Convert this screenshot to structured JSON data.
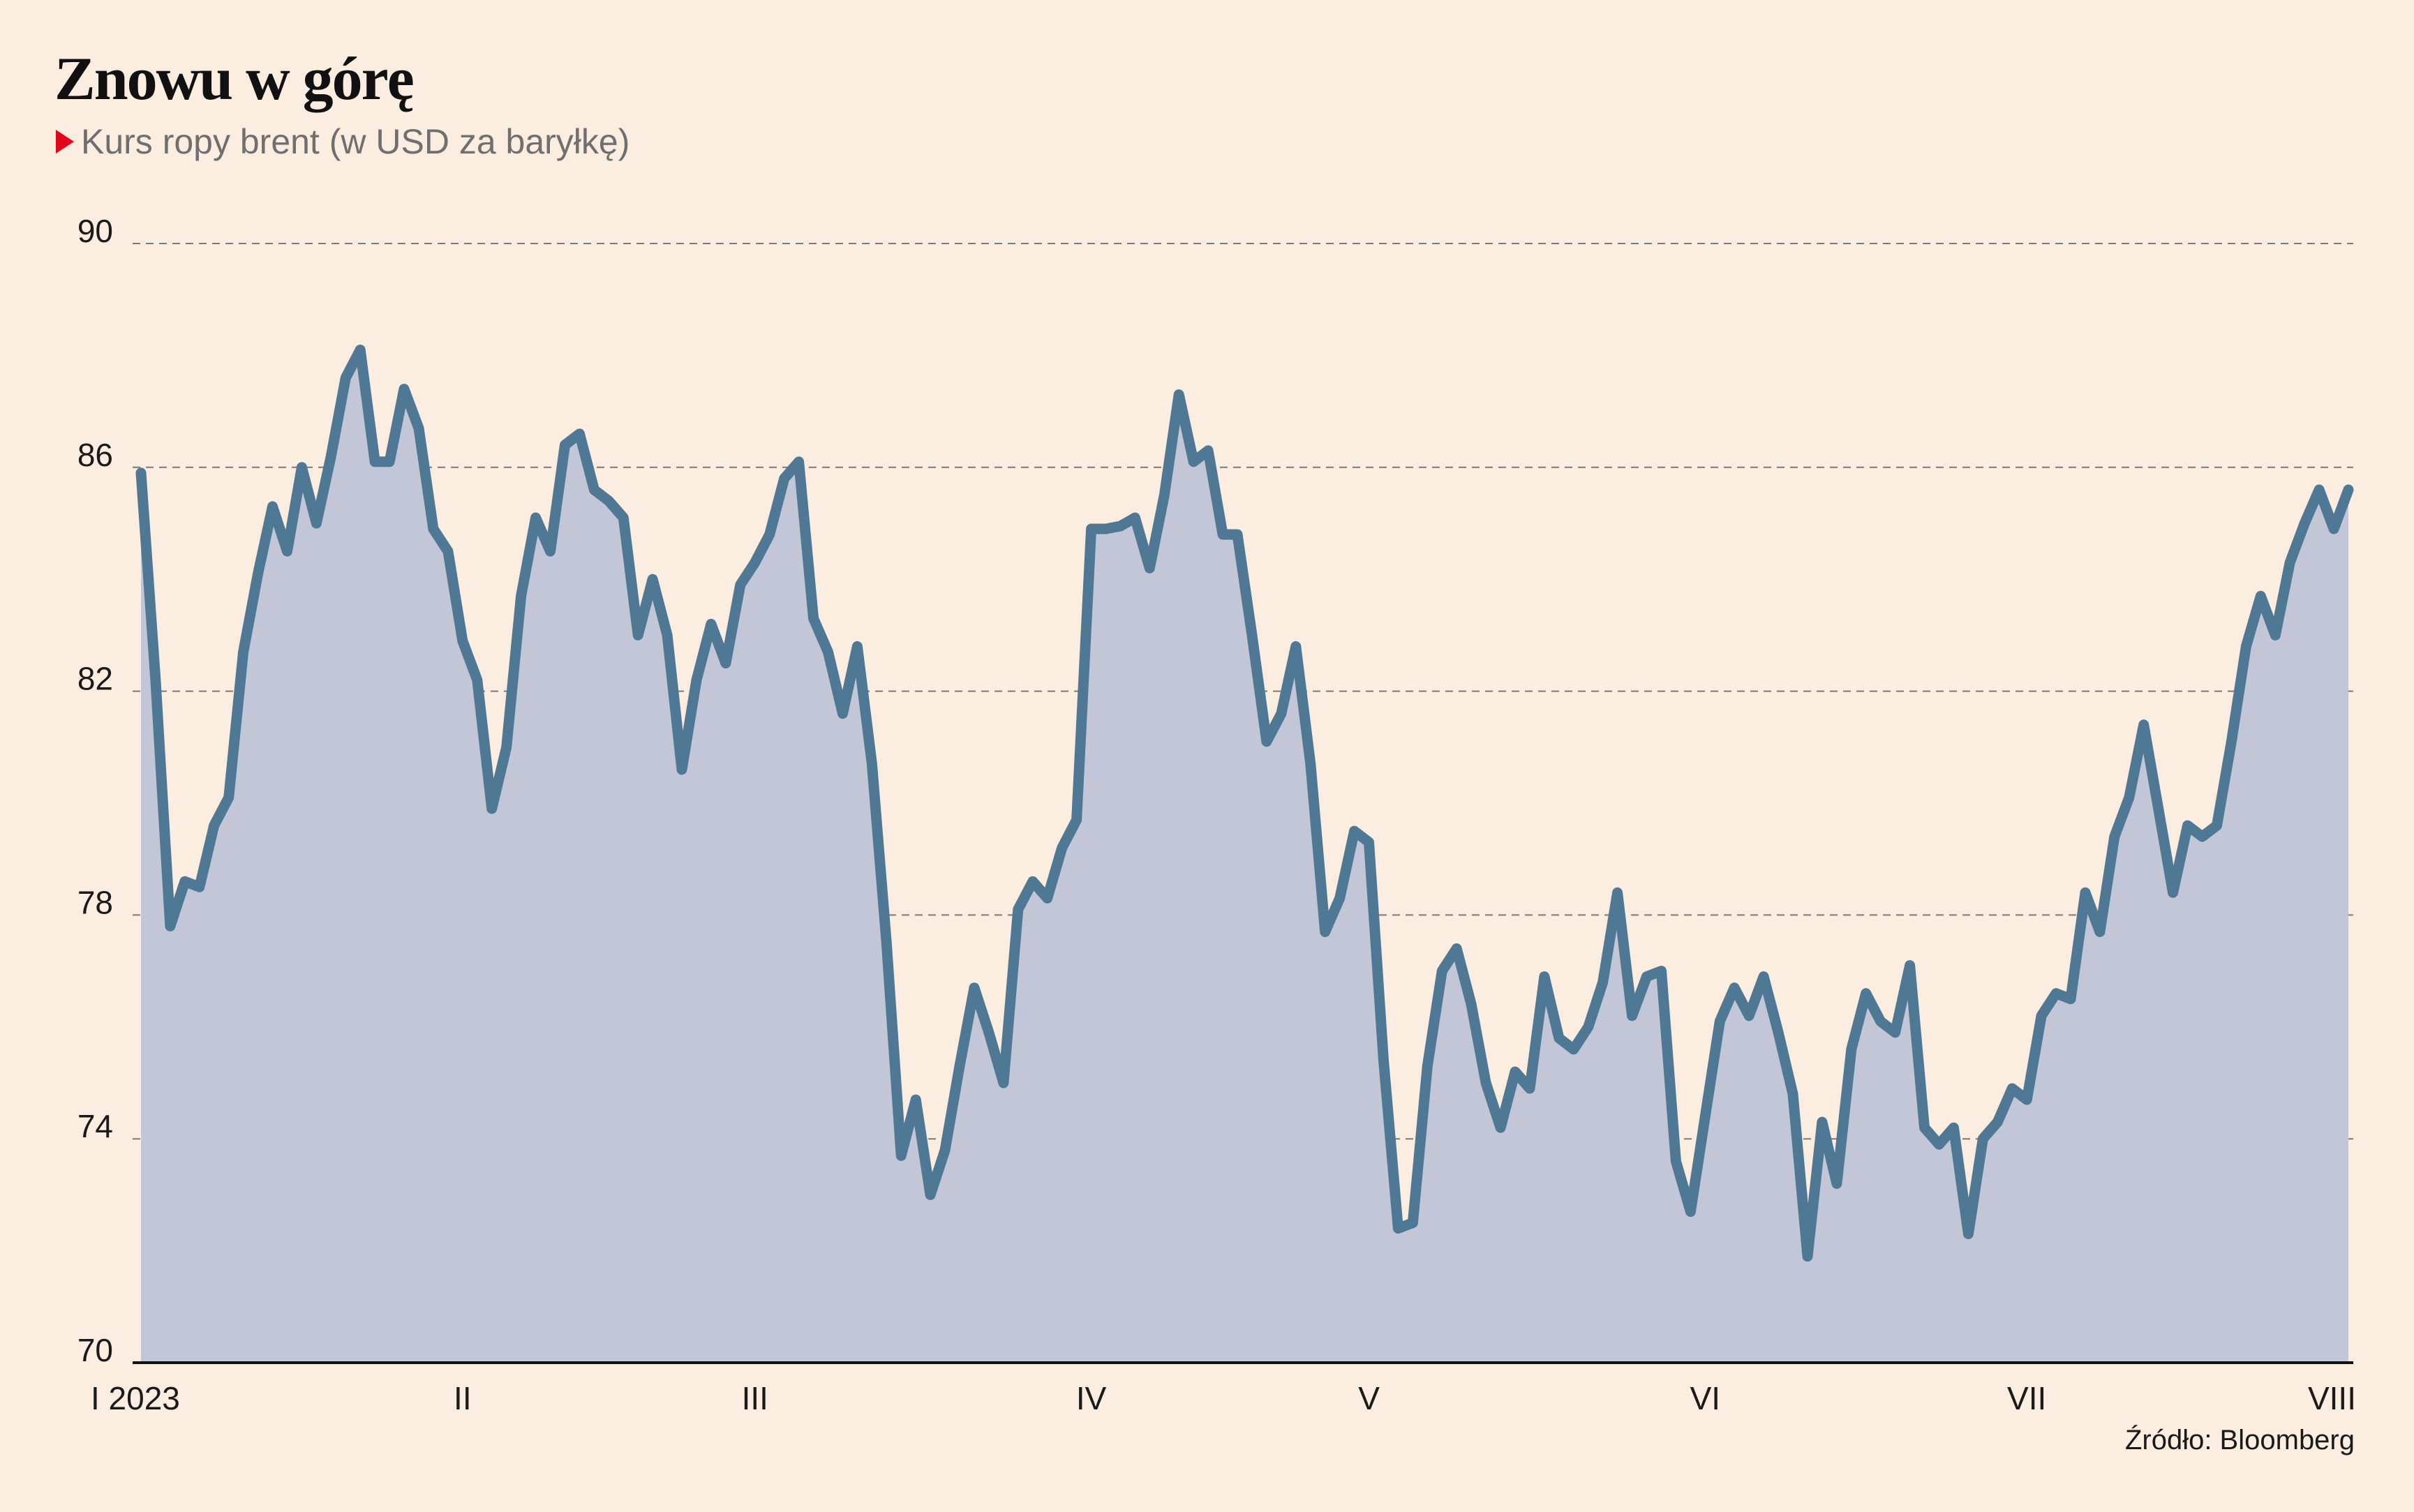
{
  "title": "Znowu w górę",
  "subtitle": "Kurs ropy brent (w USD za baryłkę)",
  "source": "Źródło: Bloomberg",
  "colors": {
    "background": "#fbede0",
    "line": "#4f7895",
    "area": "#c2c6d6",
    "grid": "#7a7a7a",
    "axis": "#111111",
    "marker": "#e3061b"
  },
  "chart_data": {
    "type": "area",
    "title": "Znowu w górę",
    "subtitle": "Kurs ropy brent (w USD za baryłkę)",
    "xlabel": "",
    "ylabel": "",
    "ylim": [
      70,
      90
    ],
    "yticks": [
      70,
      74,
      78,
      82,
      86,
      90
    ],
    "grid": true,
    "xlim": [
      0,
      151
    ],
    "xticks": [
      {
        "x": 0,
        "label": "I 2023"
      },
      {
        "x": 22,
        "label": "II"
      },
      {
        "x": 42,
        "label": "III"
      },
      {
        "x": 65,
        "label": "IV"
      },
      {
        "x": 84,
        "label": "V"
      },
      {
        "x": 107,
        "label": "VI"
      },
      {
        "x": 129,
        "label": "VII"
      },
      {
        "x": 151,
        "label": "VIII"
      }
    ],
    "series": [
      {
        "values": [
          85.9,
          82.2,
          77.8,
          78.6,
          78.5,
          79.6,
          80.1,
          82.7,
          84.1,
          85.3,
          84.5,
          86.0,
          85.0,
          86.2,
          87.6,
          88.1,
          86.1,
          86.1,
          87.4,
          86.7,
          84.9,
          84.5,
          82.9,
          82.2,
          79.9,
          81.0,
          83.7,
          85.1,
          84.5,
          86.4,
          86.6,
          85.6,
          85.4,
          85.1,
          83.0,
          84.0,
          83.0,
          80.6,
          82.2,
          83.2,
          82.5,
          83.9,
          84.3,
          84.8,
          85.8,
          86.1,
          83.3,
          82.7,
          81.6,
          82.8,
          80.7,
          77.5,
          73.7,
          74.7,
          73.0,
          73.8,
          75.3,
          76.7,
          75.9,
          75.0,
          78.1,
          78.6,
          78.3,
          79.2,
          79.7,
          84.9,
          84.9,
          84.95,
          85.1,
          84.2,
          85.5,
          87.3,
          86.1,
          86.3,
          84.8,
          84.8,
          83.0,
          81.1,
          81.6,
          82.8,
          80.7,
          77.7,
          78.3,
          79.5,
          79.3,
          75.4,
          72.4,
          72.5,
          75.3,
          77.0,
          77.4,
          76.4,
          75.0,
          74.2,
          75.2,
          74.9,
          76.9,
          75.8,
          75.6,
          76.0,
          76.8,
          78.4,
          76.2,
          76.9,
          77.0,
          73.6,
          72.7,
          74.4,
          76.1,
          76.7,
          76.2,
          76.9,
          75.9,
          74.8,
          71.9,
          74.3,
          73.2,
          75.6,
          76.6,
          76.1,
          75.9,
          77.1,
          74.2,
          73.9,
          74.2,
          72.3,
          74.0,
          74.3,
          74.9,
          74.7,
          76.2,
          76.6,
          76.5,
          78.4,
          77.7,
          79.4,
          80.1,
          81.4,
          79.9,
          78.4,
          79.6,
          79.4,
          79.6,
          81.1,
          82.8,
          83.7,
          83.0,
          84.3,
          85.0,
          85.6,
          84.9,
          85.6
        ]
      }
    ]
  }
}
